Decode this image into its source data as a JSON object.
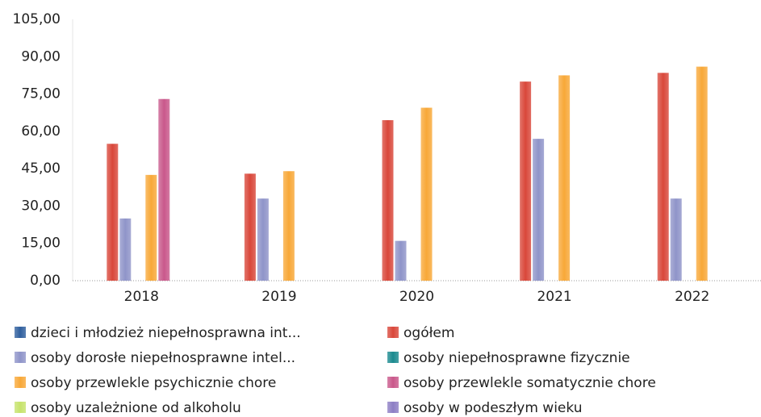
{
  "chart_data": {
    "type": "bar",
    "categories": [
      "2018",
      "2019",
      "2020",
      "2021",
      "2022"
    ],
    "series": [
      {
        "name": "dzieci i młodzież niepełnosprawna int...",
        "color": "#2f5f9e",
        "values": [
          null,
          null,
          null,
          null,
          null
        ]
      },
      {
        "name": "ogółem",
        "color": "#d9473a",
        "values": [
          55,
          43,
          64.5,
          80,
          83.5
        ]
      },
      {
        "name": "osoby dorosłe niepełnosprawne intel...",
        "color": "#8f94c9",
        "values": [
          25,
          33,
          16,
          57,
          33
        ]
      },
      {
        "name": "osoby niepełnosprawne fizycznie",
        "color": "#1a8a8f",
        "values": [
          null,
          null,
          null,
          null,
          null
        ]
      },
      {
        "name": "osoby przewlekle psychicznie chore",
        "color": "#f8a838",
        "values": [
          42.5,
          44,
          69.5,
          82.5,
          86
        ]
      },
      {
        "name": "osoby przewlekle somatycznie chore",
        "color": "#c9588b",
        "values": [
          73,
          null,
          null,
          null,
          null
        ]
      },
      {
        "name": "osoby uzależnione od alkoholu",
        "color": "#c6e36b",
        "values": [
          null,
          null,
          null,
          null,
          null
        ]
      },
      {
        "name": "osoby w podeszłym wieku",
        "color": "#8d7ec4",
        "values": [
          null,
          null,
          null,
          null,
          null
        ]
      }
    ],
    "ylim": [
      0,
      105
    ],
    "yticks": [
      {
        "value": 0,
        "label": "0,00"
      },
      {
        "value": 15,
        "label": "15,00"
      },
      {
        "value": 30,
        "label": "30,00"
      },
      {
        "value": 45,
        "label": "45,00"
      },
      {
        "value": 60,
        "label": "60,00"
      },
      {
        "value": 75,
        "label": "75,00"
      },
      {
        "value": 90,
        "label": "90,00"
      },
      {
        "value": 105,
        "label": "105,00"
      }
    ],
    "grid": false,
    "legend": "bottom"
  }
}
